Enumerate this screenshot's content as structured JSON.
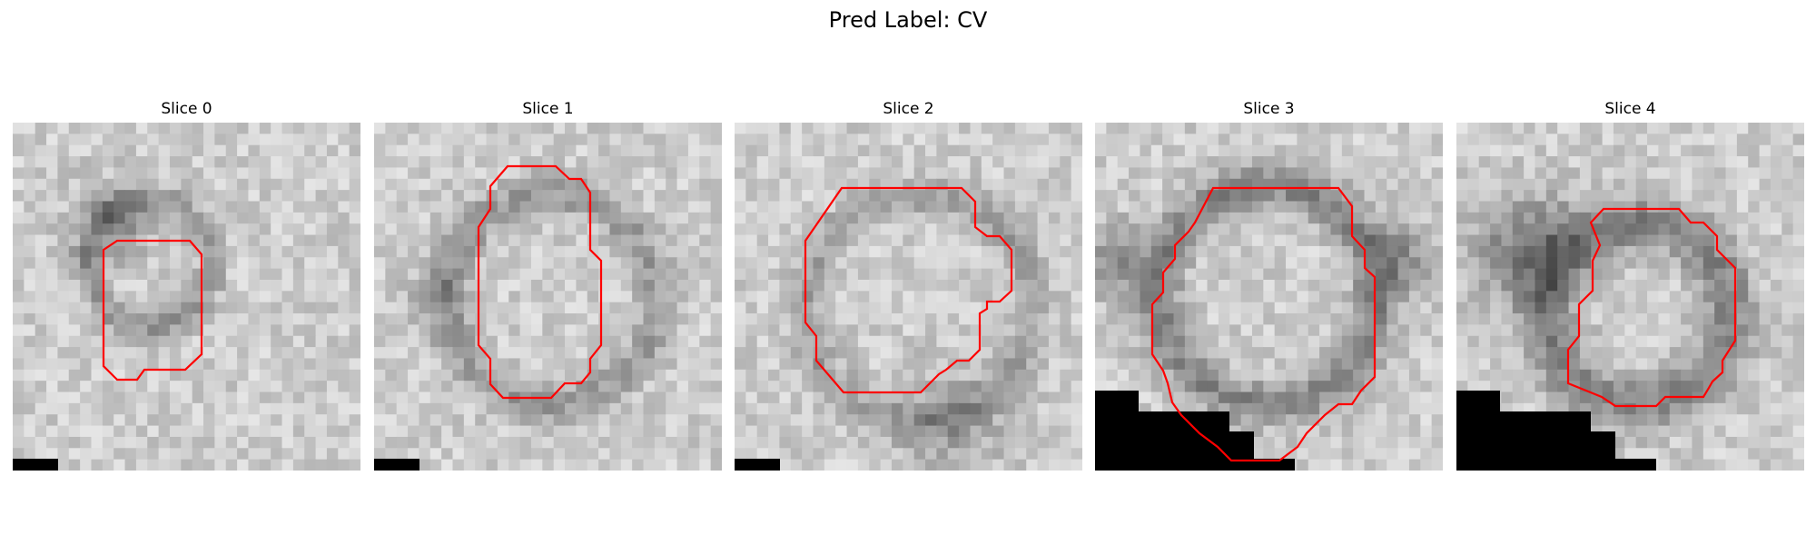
{
  "figure": {
    "title": "Pred Label: CV"
  },
  "slices": [
    {
      "title": "Slice 0",
      "image": "noisy-grayscale-microscopy-patch",
      "contour_color": "#ff0000"
    },
    {
      "title": "Slice 1",
      "image": "noisy-grayscale-microscopy-patch",
      "contour_color": "#ff0000"
    },
    {
      "title": "Slice 2",
      "image": "noisy-grayscale-microscopy-patch",
      "contour_color": "#ff0000"
    },
    {
      "title": "Slice 3",
      "image": "noisy-grayscale-microscopy-patch",
      "contour_color": "#ff0000"
    },
    {
      "title": "Slice 4",
      "image": "noisy-grayscale-microscopy-patch",
      "contour_color": "#ff0000"
    }
  ]
}
